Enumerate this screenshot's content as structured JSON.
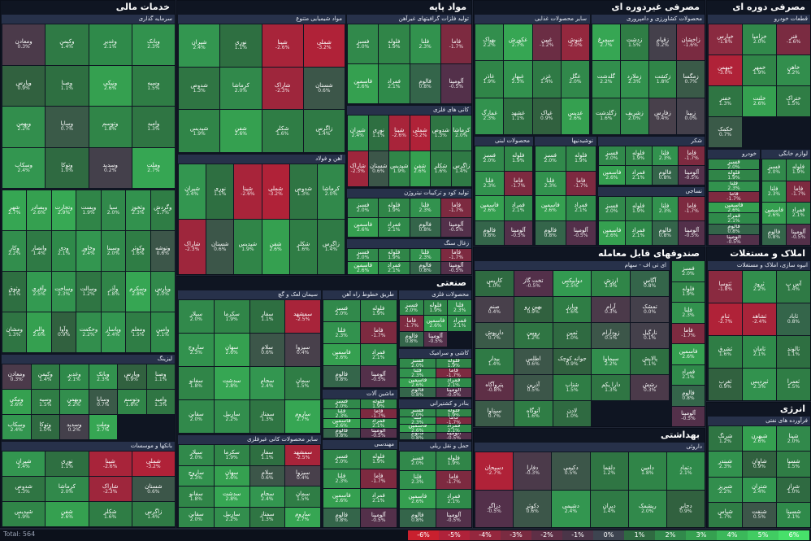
{
  "sections": {
    "financial": "خدمات مالی",
    "base_materials": "مواد پایه",
    "consumer_nondurable": "مصرفی غیردوره ای",
    "cyclical": "مصرفی دوره ای",
    "funds": "صندوقهای قابل معامله",
    "real_estate": "املاک و مستغلات",
    "industry": "صنعتی",
    "health": "بهداشتی",
    "energy": "انرژی"
  },
  "subsections": {
    "investments": "سرمایه گذاری",
    "chemical": "مواد شیمیایی متنوع",
    "graphite": "تولید فلزات گرافیتهای غیرآهن",
    "food": "سایر محصولات غذایی",
    "farming": "محصولات کشاورزی و دامپروری",
    "auto_parts": "قطعات خودرو",
    "basic_metals": "کانی های فلزی",
    "dairy": "محصولات لبنی",
    "sugar": "شکر",
    "beverages": "نوشیدنیها",
    "textiles": "نساجی",
    "paper": "محصولات کاغذی",
    "iron_steel": "آهن و فولاد",
    "wood": "تولید کود و ترکیبات نیتروژن",
    "construction_stone": "زغال سنگ",
    "etf": "ای تی اف - سهام",
    "cement": "سیمان لعک و گچ",
    "tiles": "طریق خطوط راه آهن",
    "metal_products": "محصولات فلزی",
    "ceramic": "کاشی و سرامیک",
    "machinery": "ماشین آلات",
    "transport": "بنادر و کشتیرانی",
    "auto": "خودرو",
    "home_appl": "لوازم خانگی",
    "cables": "سایر محصولات کانی غیرفلزی",
    "contracting": "پیمانکاری",
    "industrial_eng": "مهندسی",
    "pharma": "داروئی",
    "refinery": "فرآورده های نفتی",
    "leasing": "لیزینگ",
    "banks": "بانکها و موسسات",
    "insurance": "بیمه و بازنشستگی",
    "building": "انبوه سازی، املاک و مستغلات",
    "electricity": "برق",
    "rail": "حمل و نقل ریلی",
    "water": "آب و فاضلاب"
  },
  "cells": {
    "investments": [
      {
        "n": "ومعادن",
        "p": "0.3%",
        "c": "#4b3a4a"
      },
      {
        "n": "وکیمن",
        "p": "1.4%",
        "c": "#2f7a45"
      },
      {
        "n": "وغدیر",
        "p": "2.1%",
        "c": "#2f8a4a"
      },
      {
        "n": "وبانک",
        "p": "2.3%",
        "c": "#32924e"
      },
      {
        "n": "وپارس",
        "p": "0.9%",
        "c": "#31613f"
      },
      {
        "n": "وصنا",
        "p": "1.1%",
        "c": "#2e6f41"
      },
      {
        "n": "ونیکی",
        "p": "2.6%",
        "c": "#35a050"
      },
      {
        "n": "وسپه",
        "p": "1.5%",
        "c": "#2f7d45"
      },
      {
        "n": "وبهمن",
        "p": "2.2%",
        "c": "#328e4d"
      },
      {
        "n": "وساپا",
        "p": "0.7%",
        "c": "#3a5a48"
      },
      {
        "n": "وتوسم",
        "p": "1.8%",
        "c": "#308548"
      },
      {
        "n": "وامید",
        "p": "1.3%",
        "c": "#2f7543"
      },
      {
        "n": "وسکاب",
        "p": "2.4%",
        "c": "#339650"
      },
      {
        "n": "وتوکا",
        "p": "1.0%",
        "c": "#2f6a41"
      },
      {
        "n": "وسدید",
        "p": "0.2%",
        "c": "#44404b"
      },
      {
        "n": "وملت",
        "p": "2.7%",
        "c": "#36a653"
      }
    ],
    "chemical": [
      {
        "n": "شیران",
        "p": "2.4%",
        "c": "#339650"
      },
      {
        "n": "نوری",
        "p": "1.1%",
        "c": "#2e6f41"
      },
      {
        "n": "شپنا",
        "p": "-2.6%",
        "c": "#a8243a"
      },
      {
        "n": "شملی",
        "p": "-3.2%",
        "c": "#b02238"
      },
      {
        "n": "شدوص",
        "p": "1.3%",
        "c": "#2f7543"
      },
      {
        "n": "کرماشا",
        "p": "2.0%",
        "c": "#31894b"
      },
      {
        "n": "شاراک",
        "p": "-2.3%",
        "c": "#9e263c"
      },
      {
        "n": "شستان",
        "p": "0.6%",
        "c": "#3c5649"
      },
      {
        "n": "شپدیس",
        "p": "1.9%",
        "c": "#308548"
      },
      {
        "n": "شفن",
        "p": "2.6%",
        "c": "#35a050"
      },
      {
        "n": "شکلر",
        "p": "1.6%",
        "c": "#2f7d45"
      },
      {
        "n": "زاگرس",
        "p": "1.4%",
        "c": "#2f7a45"
      }
    ],
    "graphite": [
      {
        "n": "فسبز",
        "p": "2.0%",
        "c": "#31894b"
      },
      {
        "n": "فلوله",
        "p": "1.9%",
        "c": "#308548"
      },
      {
        "n": "فلنا",
        "p": "2.3%",
        "c": "#32924e"
      },
      {
        "n": "فاما",
        "p": "-1.7%",
        "c": "#7d2a40"
      },
      {
        "n": "فاسمین",
        "p": "2.6%",
        "c": "#35a050"
      },
      {
        "n": "فمراد",
        "p": "2.1%",
        "c": "#2f8a4a"
      },
      {
        "n": "فالوم",
        "p": "0.8%",
        "c": "#34654a"
      },
      {
        "n": "آلومینا",
        "p": "-0.5%",
        "c": "#53304a"
      }
    ],
    "food": [
      {
        "n": "بهپاک",
        "p": "2.2%",
        "c": "#328e4d"
      },
      {
        "n": "غکورش",
        "p": "2.7%",
        "c": "#36a653"
      },
      {
        "n": "غپین",
        "p": "-1.2%",
        "c": "#6b2d44"
      },
      {
        "n": "غنوش",
        "p": "-2.0%",
        "c": "#94283e"
      },
      {
        "n": "غاذر",
        "p": "1.9%",
        "c": "#308548"
      },
      {
        "n": "غبهار",
        "p": "2.3%",
        "c": "#32924e"
      },
      {
        "n": "غزر",
        "p": "1.4%",
        "c": "#2f7a45"
      },
      {
        "n": "غگل",
        "p": "2.0%",
        "c": "#31894b"
      },
      {
        "n": "غمارگ",
        "p": "2.3%",
        "c": "#32924e"
      },
      {
        "n": "غشهد",
        "p": "1.1%",
        "c": "#2e6f41"
      },
      {
        "n": "غپاک",
        "p": "0.9%",
        "c": "#31613f"
      },
      {
        "n": "غدیس",
        "p": "2.6%",
        "c": "#35a050"
      }
    ],
    "farming": [
      {
        "n": "سیمرغ",
        "p": "2.7%",
        "c": "#36a653"
      },
      {
        "n": "زدشت",
        "p": "1.5%",
        "c": "#2f7d45"
      },
      {
        "n": "زقیام",
        "p": "0.2%",
        "c": "#44404b"
      },
      {
        "n": "زاخشان",
        "p": "-1.6%",
        "c": "#7a2b41"
      },
      {
        "n": "گلدشت",
        "p": "2.2%",
        "c": "#328e4d"
      },
      {
        "n": "زملارد",
        "p": "2.3%",
        "c": "#32924e"
      },
      {
        "n": "زکشت",
        "p": "1.8%",
        "c": "#308548"
      },
      {
        "n": "زمگسا",
        "p": "0.7%",
        "c": "#3a5a48"
      },
      {
        "n": "زگلدشت",
        "p": "1.6%",
        "c": "#2f7d45"
      },
      {
        "n": "زشریف",
        "p": "2.0%",
        "c": "#31894b"
      },
      {
        "n": "زفارس",
        "p": "0.4%",
        "c": "#48404b"
      },
      {
        "n": "زبینا",
        "p": "0.0%",
        "c": "#44404b"
      }
    ],
    "auto_parts": [
      {
        "n": "خپارس",
        "p": "-1.8%",
        "c": "#8a2a40"
      },
      {
        "n": "خزامیا",
        "p": "2.0%",
        "c": "#31894b"
      },
      {
        "n": "فنر",
        "p": "-1.6%",
        "c": "#7a2b41"
      },
      {
        "n": "خبهمن",
        "p": "-3.0%",
        "c": "#b02238"
      },
      {
        "n": "خمهر",
        "p": "1.9%",
        "c": "#308548"
      },
      {
        "n": "خاهن",
        "p": "2.2%",
        "c": "#328e4d"
      },
      {
        "n": "خفنر",
        "p": "1.3%",
        "c": "#2f7543"
      },
      {
        "n": "خلنت",
        "p": "2.6%",
        "c": "#35a050"
      },
      {
        "n": "ختراک",
        "p": "1.5%",
        "c": "#2f7d45"
      },
      {
        "n": "خکمک",
        "p": "0.7%",
        "c": "#3a5a48"
      }
    ],
    "etf": [
      {
        "n": "کاریس",
        "p": "1.0%",
        "c": "#2f6a41"
      },
      {
        "n": "تخت گاز",
        "p": "-0.5%",
        "c": "#53304a"
      },
      {
        "n": "دوابیکس",
        "p": "2.5%",
        "c": "#339a51"
      },
      {
        "n": "ارزش",
        "p": "1.9%",
        "c": "#308548"
      },
      {
        "n": "آگاس",
        "p": "0.8%",
        "c": "#34654a"
      },
      {
        "n": "صنم",
        "p": "0.4%",
        "c": "#48404b"
      },
      {
        "n": "بهین رو",
        "p": "0.9%",
        "c": "#31613f"
      },
      {
        "n": "ویارز",
        "p": "1.6%",
        "c": "#2f7d45"
      },
      {
        "n": "آرام",
        "p": "0.3%",
        "c": "#4b3a4a"
      },
      {
        "n": "تمشک",
        "p": "0.0%",
        "c": "#44404b"
      },
      {
        "n": "داریوش",
        "p": "0.7%",
        "c": "#3a5a48"
      },
      {
        "n": "رویین",
        "p": "1.2%",
        "c": "#2f7543"
      },
      {
        "n": "ثمین",
        "p": "1.0%",
        "c": "#2f6a41"
      },
      {
        "n": "زودآرام",
        "p": "0.5%",
        "c": "#3c5649"
      },
      {
        "n": "نارگیل",
        "p": "0.1%",
        "c": "#44404b"
      },
      {
        "n": "بیدار",
        "p": "1.4%",
        "c": "#2f7a45"
      },
      {
        "n": "اطلس",
        "p": "0.6%",
        "c": "#3c5649"
      },
      {
        "n": "جوانه کوچک",
        "p": "0.9%",
        "c": "#31613f"
      },
      {
        "n": "سیماوا",
        "p": "2.2%",
        "c": "#328e4d"
      },
      {
        "n": "پالایش",
        "p": "1.1%",
        "c": "#2e6f41"
      },
      {
        "n": "پتروآگاه",
        "p": "-0.8%",
        "c": "#5e2f46"
      },
      {
        "n": "آذرین",
        "p": "0.5%",
        "c": "#3c5649"
      },
      {
        "n": "شتاب",
        "p": "1.5%",
        "c": "#2f7d45"
      },
      {
        "n": "دارا یکم",
        "p": "1.3%",
        "c": "#2f7543"
      },
      {
        "n": "رشش",
        "p": "0.3%",
        "c": "#4b3a4a"
      },
      {
        "n": "سیناوا",
        "p": "0.7%",
        "c": "#3a5a48"
      },
      {
        "n": "آتوگاه",
        "p": "1.6%",
        "c": "#2f7d45"
      },
      {
        "n": "لادن",
        "p": "1.0%",
        "c": "#2f6a41"
      }
    ],
    "cement": [
      {
        "n": "سیلار",
        "p": "2.0%",
        "c": "#31894b"
      },
      {
        "n": "سکرما",
        "p": "1.9%",
        "c": "#308548"
      },
      {
        "n": "سفار",
        "p": "1.1%",
        "c": "#2e6f41"
      },
      {
        "n": "سمشهد",
        "p": "-2.5%",
        "c": "#a8243a"
      },
      {
        "n": "ساروج",
        "p": "2.3%",
        "c": "#32924e"
      },
      {
        "n": "سهان",
        "p": "2.6%",
        "c": "#35a050"
      },
      {
        "n": "سلام",
        "p": "0.6%",
        "c": "#3c5649"
      },
      {
        "n": "سیزوا",
        "p": "0.4%",
        "c": "#48404b"
      },
      {
        "n": "سفانو",
        "p": "1.8%",
        "c": "#308548"
      },
      {
        "n": "سدشت",
        "p": "2.8%",
        "c": "#36a653"
      },
      {
        "n": "سجام",
        "p": "2.4%",
        "c": "#339650"
      },
      {
        "n": "سمان",
        "p": "1.5%",
        "c": "#2f7d45"
      },
      {
        "n": "سقاین",
        "p": "2.0%",
        "c": "#31894b"
      },
      {
        "n": "ساربیل",
        "p": "2.2%",
        "c": "#328e4d"
      },
      {
        "n": "سمتاز",
        "p": "1.3%",
        "c": "#2f7543"
      },
      {
        "n": "ساروم",
        "p": "2.7%",
        "c": "#36a653"
      }
    ],
    "pharma": [
      {
        "n": "دسبحان",
        "p": "-2.7%",
        "c": "#b02238"
      },
      {
        "n": "دفارا",
        "p": "-0.3%",
        "c": "#4b3a4a"
      },
      {
        "n": "دکیمی",
        "p": "0.5%",
        "c": "#3c5649"
      },
      {
        "n": "دلقما",
        "p": "1.2%",
        "c": "#2f7543"
      },
      {
        "n": "دامین",
        "p": "1.8%",
        "c": "#308548"
      },
      {
        "n": "دتماد",
        "p": "2.1%",
        "c": "#2f8a4a"
      },
      {
        "n": "دزاگر",
        "p": "-0.5%",
        "c": "#53304a"
      },
      {
        "n": "دکوثر",
        "p": "0.6%",
        "c": "#3c5649"
      },
      {
        "n": "دشیمی",
        "p": "2.4%",
        "c": "#339650"
      },
      {
        "n": "دیران",
        "p": "1.4%",
        "c": "#2f7a45"
      },
      {
        "n": "ریشمک",
        "p": "2.0%",
        "c": "#31894b"
      },
      {
        "n": "دجابر",
        "p": "0.9%",
        "c": "#31613f"
      }
    ],
    "refinery": [
      {
        "n": "شرنگ",
        "p": "1.2%",
        "c": "#2f7543"
      },
      {
        "n": "شبهرن",
        "p": "2.6%",
        "c": "#35a050"
      },
      {
        "n": "شپنا",
        "p": "2.0%",
        "c": "#31894b"
      },
      {
        "n": "شبندر",
        "p": "2.3%",
        "c": "#32924e"
      },
      {
        "n": "شاوان",
        "p": "0.9%",
        "c": "#31613f"
      },
      {
        "n": "شسپا",
        "p": "1.5%",
        "c": "#2f7d45"
      },
      {
        "n": "شبریز",
        "p": "2.2%",
        "c": "#328e4d"
      },
      {
        "n": "شتران",
        "p": "2.4%",
        "c": "#339650"
      },
      {
        "n": "شراز",
        "p": "1.0%",
        "c": "#2f6a41"
      },
      {
        "n": "شپاس",
        "p": "1.7%",
        "c": "#2f7d45"
      },
      {
        "n": "شنفت",
        "p": "0.5%",
        "c": "#3c5649"
      },
      {
        "n": "شسینا",
        "p": "2.1%",
        "c": "#2f8a4a"
      }
    ],
    "building": [
      {
        "n": "ثتوسا",
        "p": "-1.8%",
        "c": "#8a2a40"
      },
      {
        "n": "ثرود",
        "p": "2.2%",
        "c": "#328e4d"
      },
      {
        "n": "آس پ",
        "p": "1.4%",
        "c": "#2f7a45"
      },
      {
        "n": "ثنام",
        "p": "-2.7%",
        "c": "#b02238"
      },
      {
        "n": "ثشاهد",
        "p": "-2.4%",
        "c": "#a8243a"
      },
      {
        "n": "ثاباد",
        "p": "0.8%",
        "c": "#34654a"
      },
      {
        "n": "ثشرق",
        "p": "1.6%",
        "c": "#2f7d45"
      },
      {
        "n": "ثامان",
        "p": "2.1%",
        "c": "#2f8a4a"
      },
      {
        "n": "ثالوند",
        "p": "1.1%",
        "c": "#2e6f41"
      },
      {
        "n": "ثغرب",
        "p": "0.9%",
        "c": "#31613f"
      },
      {
        "n": "ثپردیس",
        "p": "2.3%",
        "c": "#32924e"
      },
      {
        "n": "ثعمرا",
        "p": "1.5%",
        "c": "#2f7d45"
      }
    ],
    "filler": [
      {
        "n": "شهر",
        "p": "2.7%",
        "c": "#36a653"
      },
      {
        "n": "وبصادر",
        "p": "2.6%",
        "c": "#35a050"
      },
      {
        "n": "وتجارت",
        "p": "2.9%",
        "c": "#37a954"
      },
      {
        "n": "وپست",
        "p": "1.9%",
        "c": "#308548"
      },
      {
        "n": "سیا",
        "p": "2.0%",
        "c": "#31894b"
      },
      {
        "n": "وثخوز",
        "p": "2.3%",
        "c": "#32924e"
      },
      {
        "n": "وگردش",
        "p": "1.7%",
        "c": "#2f7d45"
      },
      {
        "n": "وکار",
        "p": "2.2%",
        "c": "#328e4d"
      },
      {
        "n": "وانصار",
        "p": "1.4%",
        "c": "#2f7a45"
      },
      {
        "n": "ودی",
        "p": "2.1%",
        "c": "#2f8a4a"
      },
      {
        "n": "وخاور",
        "p": "2.4%",
        "c": "#339650"
      },
      {
        "n": "وسینا",
        "p": "2.0%",
        "c": "#31894b"
      },
      {
        "n": "وکوثر",
        "p": "1.6%",
        "c": "#2f7d45"
      },
      {
        "n": "وتوشه",
        "p": "0.6%",
        "c": "#3c5649"
      },
      {
        "n": "وثوق",
        "p": "1.1%",
        "c": "#2e6f41"
      },
      {
        "n": "وآفری",
        "p": "2.5%",
        "c": "#339a51"
      },
      {
        "n": "وساخت",
        "p": "2.3%",
        "c": "#32924e"
      },
      {
        "n": "وسالت",
        "p": "1.2%",
        "c": "#2f7543"
      },
      {
        "n": "وآذر",
        "p": "1.8%",
        "c": "#308548"
      },
      {
        "n": "وسکرم",
        "p": "2.8%",
        "c": "#36a653"
      },
      {
        "n": "وپارس",
        "p": "2.0%",
        "c": "#31894b"
      },
      {
        "n": "ومشان",
        "p": "1.3%",
        "c": "#2f7543"
      },
      {
        "n": "والبر",
        "p": "2.6%",
        "c": "#35a050"
      },
      {
        "n": "وآوا",
        "p": "0.9%",
        "c": "#31613f"
      },
      {
        "n": "وحکمت",
        "p": "2.2%",
        "c": "#328e4d"
      },
      {
        "n": "وپاسار",
        "p": "2.4%",
        "c": "#339650"
      },
      {
        "n": "ومعلم",
        "p": "1.5%",
        "c": "#2f7d45"
      },
      {
        "n": "وامین",
        "p": "2.1%",
        "c": "#2f8a4a"
      }
    ]
  },
  "leasing_header": "لیزینگ",
  "banks_header": "بانکها و موسسات",
  "footer": {
    "total": "Total: 564"
  },
  "legend": [
    {
      "label": "-6%",
      "c": "#c9202e"
    },
    {
      "label": "-5%",
      "c": "#b0223a"
    },
    {
      "label": "-4%",
      "c": "#95273e"
    },
    {
      "label": "-3%",
      "c": "#7a2b41"
    },
    {
      "label": "-2%",
      "c": "#5e2f46"
    },
    {
      "label": "-1%",
      "c": "#4a3548"
    },
    {
      "label": "0%",
      "c": "#3d4450"
    },
    {
      "label": "1%",
      "c": "#2f6a41"
    },
    {
      "label": "2%",
      "c": "#31894b"
    },
    {
      "label": "3%",
      "c": "#35a050"
    },
    {
      "label": "4%",
      "c": "#3bb85a"
    },
    {
      "label": "5%",
      "c": "#41cc62"
    },
    {
      "label": "6%",
      "c": "#47e06a"
    }
  ]
}
